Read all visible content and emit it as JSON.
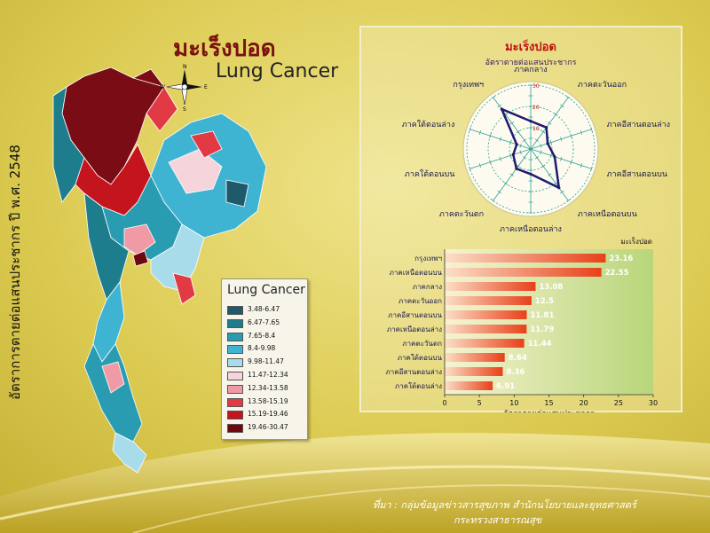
{
  "page": {
    "title_th": "มะเร็งปอด",
    "title_en": "Lung Cancer",
    "vertical_title": "อัตราการตายต่อแสนประชากร ปี พ.ศ. 2548",
    "compass": [
      "N",
      "W",
      "E",
      "S"
    ],
    "source_line1": "ที่มา : กลุ่มข้อมูลข่าวสารสุขภาพ สำนักนโยบายและยุทธศาสตร์",
    "source_line2": "กระทรวงสาธารณสุข"
  },
  "colors": {
    "bg_yellow": "#e0ce55",
    "radar_line": "#201a70",
    "radar_ring": "#2e9e94",
    "bar_fill": "#f06030",
    "label_red": "#c01010"
  },
  "legend": {
    "title": "Lung Cancer",
    "items": [
      {
        "label": "3.48-6.47",
        "color": "#1f5a6a"
      },
      {
        "label": "6.47-7.65",
        "color": "#1e7d8c"
      },
      {
        "label": "7.65-8.4",
        "color": "#2a9cb2"
      },
      {
        "label": "8.4-9.98",
        "color": "#3fb4d2"
      },
      {
        "label": "9.98-11.47",
        "color": "#a9dcea"
      },
      {
        "label": "11.47-12.34",
        "color": "#f6d4dc"
      },
      {
        "label": "12.34-13.58",
        "color": "#ef9aa5"
      },
      {
        "label": "13.58-15.19",
        "color": "#e23a45"
      },
      {
        "label": "15.19-19.46",
        "color": "#c4141e"
      },
      {
        "label": "19.46-30.47",
        "color": "#6e0810"
      }
    ]
  },
  "chart_data": [
    {
      "type": "radar",
      "title": "มะเร็งปอด",
      "subtitle": "อัตราตายต่อแสนประชากร",
      "categories": [
        "ภาคกลาง",
        "ภาคตะวันออก",
        "ภาคอีสานตอนล่าง",
        "ภาคอีสานตอนบน",
        "ภาคเหนือตอนบน",
        "ภาคเหนือตอนล่าง",
        "ภาคตะวันตก",
        "ภาคใต้ตอนบน",
        "ภาคใต้ตอนล่าง",
        "กรุงเทพฯ"
      ],
      "values": [
        13.08,
        12.5,
        8.36,
        11.81,
        22.55,
        11.79,
        11.44,
        8.64,
        6.91,
        23.16
      ],
      "ticks": [
        "10",
        "20",
        "30"
      ],
      "rlim": [
        0,
        30
      ]
    },
    {
      "type": "bar",
      "orientation": "horizontal",
      "legend": "มะเร็งปอด",
      "categories": [
        "กรุงเทพฯ",
        "ภาคเหนือตอนบน",
        "ภาคกลาง",
        "ภาคตะวันออก",
        "ภาคอีสานตอนบน",
        "ภาคเหนือตอนล่าง",
        "ภาคตะวันตก",
        "ภาคใต้ตอนบน",
        "ภาคอีสานตอนล่าง",
        "ภาคใต้ตอนล่าง"
      ],
      "values": [
        23.16,
        22.55,
        13.08,
        12.5,
        11.81,
        11.79,
        11.44,
        8.64,
        8.36,
        6.91
      ],
      "data_labels": [
        "23.16",
        "22.55",
        "13.08",
        "12.5",
        "11.81",
        "11.79",
        "11.44",
        "8.64",
        "8.36",
        "6.91"
      ],
      "xticks": [
        "0",
        "5",
        "10",
        "15",
        "20",
        "25",
        "30"
      ],
      "xlim": [
        0,
        30
      ],
      "xlabel": "อัตราตายต่อแสนประชากร"
    }
  ]
}
